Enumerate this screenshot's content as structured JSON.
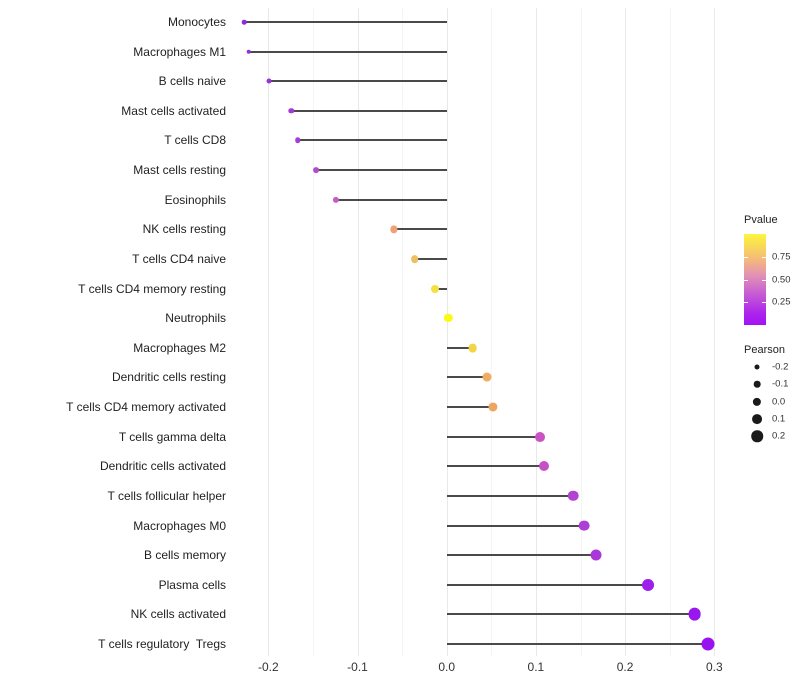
{
  "chart_data": {
    "type": "scatter",
    "subtype": "lollipop",
    "title": "",
    "xlabel": "",
    "ylabel": "",
    "xlim": [
      -0.24,
      0.32
    ],
    "grid": "vertical-only",
    "x_ticks": [
      {
        "label": "-0.2",
        "value": -0.2
      },
      {
        "label": "-0.1",
        "value": -0.1
      },
      {
        "label": "0.0",
        "value": 0.0
      },
      {
        "label": "0.1",
        "value": 0.1
      },
      {
        "label": "0.2",
        "value": 0.2
      },
      {
        "label": "0.3",
        "value": 0.3
      }
    ],
    "x_gridlines_minor": [
      -0.15,
      -0.05,
      0.05,
      0.15,
      0.25
    ],
    "points": [
      {
        "label": "Monocytes",
        "pearson": -0.227,
        "pvalue_est": 0.05,
        "color": "#8D2BDF"
      },
      {
        "label": "Macrophages M1",
        "pearson": -0.222,
        "pvalue_est": 0.07,
        "color": "#9130DC"
      },
      {
        "label": "B cells naive",
        "pearson": -0.199,
        "pvalue_est": 0.1,
        "color": "#9934DA"
      },
      {
        "label": "Mast cells activated",
        "pearson": -0.174,
        "pvalue_est": 0.13,
        "color": "#A23AD7"
      },
      {
        "label": "T cells CD8",
        "pearson": -0.167,
        "pvalue_est": 0.15,
        "color": "#A43CD5"
      },
      {
        "label": "Mast cells resting",
        "pearson": -0.146,
        "pvalue_est": 0.22,
        "color": "#B24CCB"
      },
      {
        "label": "Eosinophils",
        "pearson": -0.124,
        "pvalue_est": 0.3,
        "color": "#C45EC6"
      },
      {
        "label": "NK cells resting",
        "pearson": -0.059,
        "pvalue_est": 0.62,
        "color": "#F0A175"
      },
      {
        "label": "T cells CD4 naive",
        "pearson": -0.036,
        "pvalue_est": 0.73,
        "color": "#F0BE62"
      },
      {
        "label": "T cells CD4 memory resting",
        "pearson": -0.013,
        "pvalue_est": 0.88,
        "color": "#F3E041"
      },
      {
        "label": "Neutrophils",
        "pearson": 0.002,
        "pvalue_est": 0.97,
        "color": "#FAFA18"
      },
      {
        "label": "Macrophages M2",
        "pearson": 0.029,
        "pvalue_est": 0.85,
        "color": "#F3D443"
      },
      {
        "label": "Dendritic cells resting",
        "pearson": 0.045,
        "pvalue_est": 0.7,
        "color": "#F0AC60"
      },
      {
        "label": "T cells CD4 memory activated",
        "pearson": 0.052,
        "pvalue_est": 0.67,
        "color": "#EFA562"
      },
      {
        "label": "T cells gamma delta",
        "pearson": 0.105,
        "pvalue_est": 0.3,
        "color": "#CB54C3"
      },
      {
        "label": "Dendritic cells activated",
        "pearson": 0.109,
        "pvalue_est": 0.28,
        "color": "#C850C6"
      },
      {
        "label": "T cells follicular helper",
        "pearson": 0.142,
        "pvalue_est": 0.2,
        "color": "#B245D0"
      },
      {
        "label": "Macrophages M0",
        "pearson": 0.154,
        "pvalue_est": 0.18,
        "color": "#AE3FD4"
      },
      {
        "label": "B cells memory",
        "pearson": 0.167,
        "pvalue_est": 0.15,
        "color": "#A937D9"
      },
      {
        "label": "Plasma cells",
        "pearson": 0.226,
        "pvalue_est": 0.06,
        "color": "#9C20E9"
      },
      {
        "label": "NK cells activated",
        "pearson": 0.278,
        "pvalue_est": 0.04,
        "color": "#9717EE"
      },
      {
        "label": "T cells regulatory  Tregs",
        "pearson": 0.293,
        "pvalue_est": 0.03,
        "color": "#9913F1"
      }
    ],
    "legend": {
      "position": "right",
      "pvalue": {
        "title": "Pvalue",
        "range": [
          0,
          1
        ],
        "ticks": [
          {
            "label": "0.75",
            "value": 0.75
          },
          {
            "label": "0.50",
            "value": 0.5
          },
          {
            "label": "0.25",
            "value": 0.25
          }
        ],
        "gradient_top_to_bottom": [
          {
            "pos": 0.0,
            "color": "#FCF53F"
          },
          {
            "pos": 0.12,
            "color": "#F8DC55"
          },
          {
            "pos": 0.28,
            "color": "#F4B97B"
          },
          {
            "pos": 0.45,
            "color": "#E292B4"
          },
          {
            "pos": 0.6,
            "color": "#CE6BCB"
          },
          {
            "pos": 0.75,
            "color": "#BB44DF"
          },
          {
            "pos": 0.88,
            "color": "#AB22EC"
          },
          {
            "pos": 1.0,
            "color": "#A512F5"
          }
        ]
      },
      "pearson": {
        "title": "Pearson",
        "entries": [
          {
            "label": "-0.2",
            "value": -0.2
          },
          {
            "label": "-0.1",
            "value": -0.1
          },
          {
            "label": "0.0",
            "value": 0.0
          },
          {
            "label": "0.1",
            "value": 0.1
          },
          {
            "label": "0.2",
            "value": 0.2
          }
        ]
      }
    }
  },
  "colors": {
    "background": "#ffffff",
    "grid_major": "#e9e9e9",
    "grid_minor": "#f5f5f5",
    "stem": "#4a4a4a",
    "axis_text": "#333333",
    "legend_dot": "#1a1a1a",
    "colorbar_tick": "#ffffff"
  }
}
